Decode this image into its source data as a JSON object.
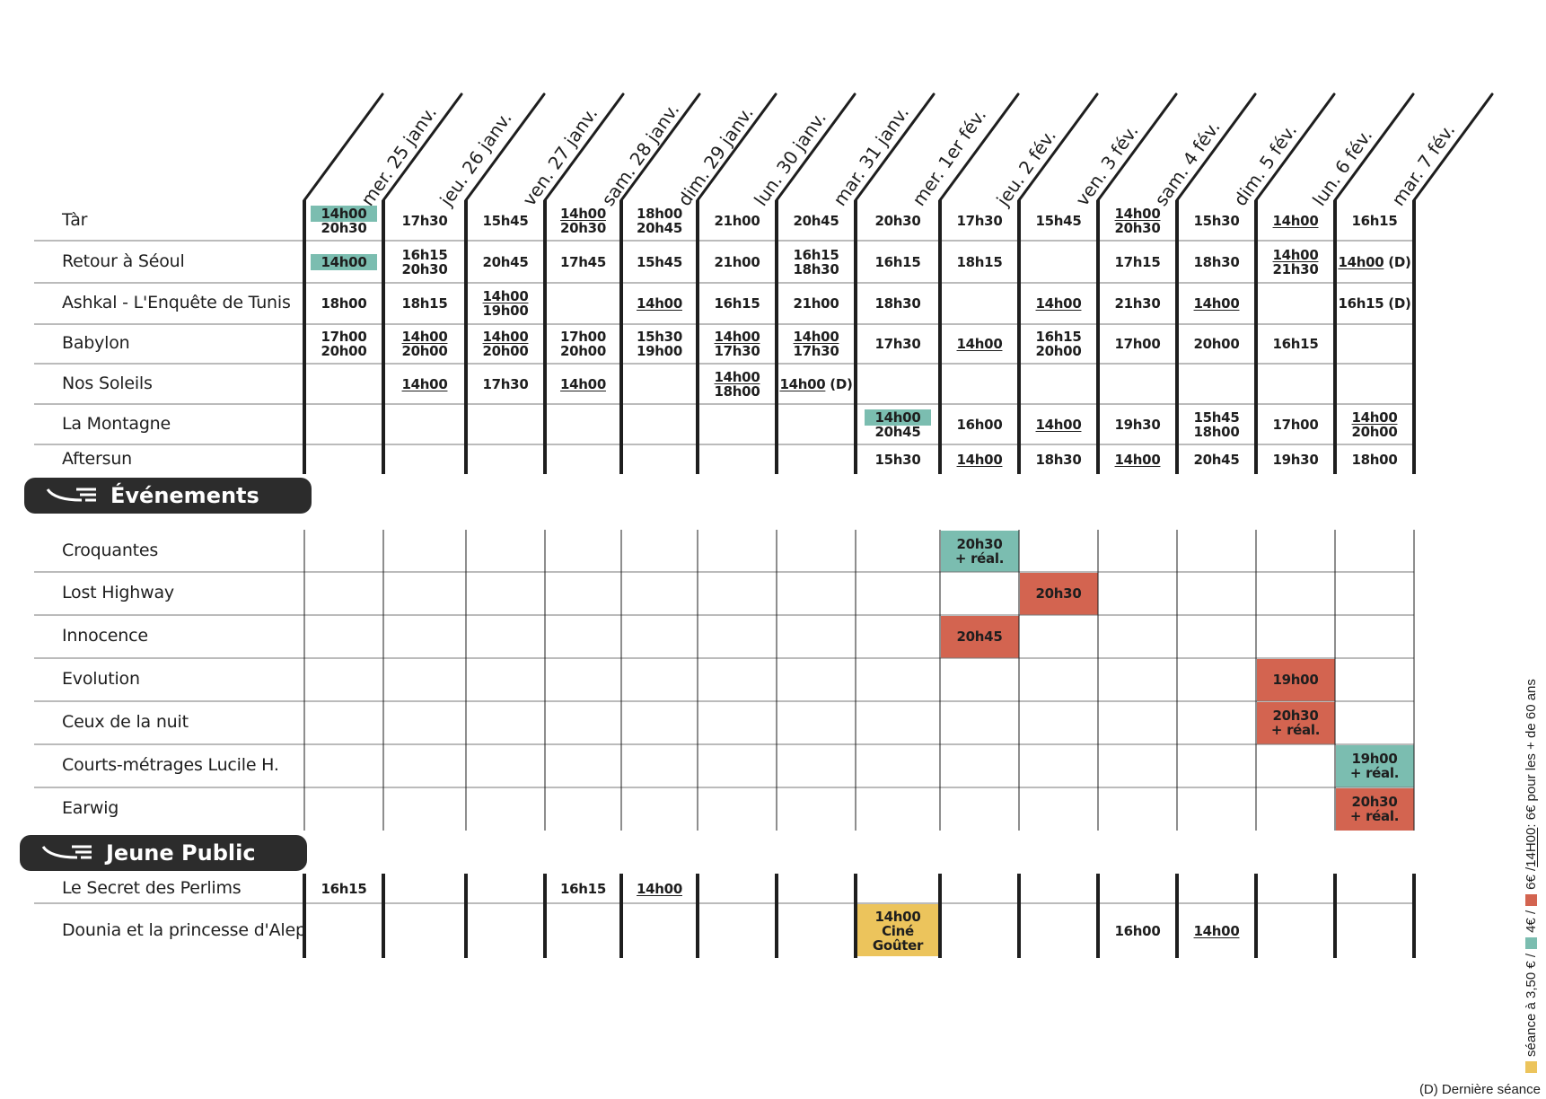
{
  "colors": {
    "teal": "#7bbdb0",
    "red": "#d36450",
    "yellow": "#ecc45c",
    "dark": "#2c2c2c",
    "line": "#1e1e1e"
  },
  "dates": [
    "mer. 25 janv.",
    "jeu. 26 janv.",
    "ven. 27 janv.",
    "sam. 28 janv.",
    "dim. 29 janv.",
    "lun. 30 janv.",
    "mar. 31 janv.",
    "mer. 1er fév.",
    "jeu. 2 fév.",
    "ven. 3 fév.",
    "sam. 4 fév.",
    "dim. 5 fév.",
    "lun. 6 fév.",
    "mar. 7 fév."
  ],
  "films": [
    {
      "title": "Tàr",
      "cells": [
        [
          {
            "t": "14h00",
            "hl": true
          },
          {
            "t": "20h30"
          }
        ],
        [
          {
            "t": "17h30"
          }
        ],
        [
          {
            "t": "15h45"
          }
        ],
        [
          {
            "t": "14h00",
            "u": true
          },
          {
            "t": "20h30"
          }
        ],
        [
          {
            "t": "18h00"
          },
          {
            "t": "20h45"
          }
        ],
        [
          {
            "t": "21h00"
          }
        ],
        [
          {
            "t": "20h45"
          }
        ],
        [
          {
            "t": "20h30"
          }
        ],
        [
          {
            "t": "17h30"
          }
        ],
        [
          {
            "t": "15h45"
          }
        ],
        [
          {
            "t": "14h00",
            "u": true
          },
          {
            "t": "20h30"
          }
        ],
        [
          {
            "t": "15h30"
          }
        ],
        [
          {
            "t": "14h00",
            "u": true
          }
        ],
        [
          {
            "t": "16h15"
          }
        ]
      ]
    },
    {
      "title": "Retour à Séoul",
      "cells": [
        [
          {
            "t": "14h00",
            "hl": true
          }
        ],
        [
          {
            "t": "16h15"
          },
          {
            "t": "20h30"
          }
        ],
        [
          {
            "t": "20h45"
          }
        ],
        [
          {
            "t": "17h45"
          }
        ],
        [
          {
            "t": "15h45"
          }
        ],
        [
          {
            "t": "21h00"
          }
        ],
        [
          {
            "t": "16h15"
          },
          {
            "t": "18h30"
          }
        ],
        [
          {
            "t": "16h15"
          }
        ],
        [
          {
            "t": "18h15"
          }
        ],
        [],
        [
          {
            "t": "17h15"
          }
        ],
        [
          {
            "t": "18h30"
          }
        ],
        [
          {
            "t": "14h00",
            "u": true
          },
          {
            "t": "21h30"
          }
        ],
        [
          {
            "t": "14h00",
            "u": true,
            "s": " (D)"
          }
        ]
      ]
    },
    {
      "title": "Ashkal - L'Enquête de Tunis",
      "cells": [
        [
          {
            "t": "18h00"
          }
        ],
        [
          {
            "t": "18h15"
          }
        ],
        [
          {
            "t": "14h00",
            "u": true
          },
          {
            "t": "19h00"
          }
        ],
        [],
        [
          {
            "t": "14h00",
            "u": true
          }
        ],
        [
          {
            "t": "16h15"
          }
        ],
        [
          {
            "t": "21h00"
          }
        ],
        [
          {
            "t": "18h30"
          }
        ],
        [],
        [
          {
            "t": "14h00",
            "u": true
          }
        ],
        [
          {
            "t": "21h30"
          }
        ],
        [
          {
            "t": "14h00",
            "u": true
          }
        ],
        [],
        [
          {
            "t": "16h15",
            "s": " (D)"
          }
        ]
      ]
    },
    {
      "title": "Babylon",
      "cells": [
        [
          {
            "t": "17h00"
          },
          {
            "t": "20h00"
          }
        ],
        [
          {
            "t": "14h00",
            "u": true
          },
          {
            "t": "20h00"
          }
        ],
        [
          {
            "t": "14h00",
            "u": true
          },
          {
            "t": "20h00"
          }
        ],
        [
          {
            "t": "17h00"
          },
          {
            "t": "20h00"
          }
        ],
        [
          {
            "t": "15h30"
          },
          {
            "t": "19h00"
          }
        ],
        [
          {
            "t": "14h00",
            "u": true
          },
          {
            "t": "17h30"
          }
        ],
        [
          {
            "t": "14h00",
            "u": true
          },
          {
            "t": "17h30"
          }
        ],
        [
          {
            "t": "17h30"
          }
        ],
        [
          {
            "t": "14h00",
            "u": true
          }
        ],
        [
          {
            "t": "16h15"
          },
          {
            "t": "20h00"
          }
        ],
        [
          {
            "t": "17h00"
          }
        ],
        [
          {
            "t": "20h00"
          }
        ],
        [
          {
            "t": "16h15"
          }
        ],
        []
      ]
    },
    {
      "title": "Nos Soleils",
      "cells": [
        [],
        [
          {
            "t": "14h00",
            "u": true
          }
        ],
        [
          {
            "t": "17h30"
          }
        ],
        [
          {
            "t": "14h00",
            "u": true
          }
        ],
        [],
        [
          {
            "t": "14h00",
            "u": true
          },
          {
            "t": "18h00"
          }
        ],
        [
          {
            "t": "14h00",
            "u": true,
            "s": " (D)"
          }
        ],
        [],
        [],
        [],
        [],
        [],
        [],
        []
      ]
    },
    {
      "title": "La Montagne",
      "cells": [
        [],
        [],
        [],
        [],
        [],
        [],
        [],
        [
          {
            "t": "14h00",
            "hl": true
          },
          {
            "t": "20h45"
          }
        ],
        [
          {
            "t": "16h00"
          }
        ],
        [
          {
            "t": "14h00",
            "u": true
          }
        ],
        [
          {
            "t": "19h30"
          }
        ],
        [
          {
            "t": "15h45"
          },
          {
            "t": "18h00"
          }
        ],
        [
          {
            "t": "17h00"
          }
        ],
        [
          {
            "t": "14h00",
            "u": true
          },
          {
            "t": "20h00"
          }
        ]
      ]
    },
    {
      "title": "Aftersun",
      "cells": [
        [],
        [],
        [],
        [],
        [],
        [],
        [],
        [
          {
            "t": "15h30"
          }
        ],
        [
          {
            "t": "14h00",
            "u": true
          }
        ],
        [
          {
            "t": "18h30"
          }
        ],
        [
          {
            "t": "14h00",
            "u": true
          }
        ],
        [
          {
            "t": "20h45"
          }
        ],
        [
          {
            "t": "19h30"
          }
        ],
        [
          {
            "t": "18h00"
          }
        ]
      ]
    }
  ],
  "events_title": "Événements",
  "events": [
    {
      "title": "Croquantes",
      "col": 8,
      "bg": "teal",
      "lines": [
        "20h30",
        "+ réal."
      ]
    },
    {
      "title": "Lost Highway",
      "col": 9,
      "bg": "red",
      "lines": [
        "20h30"
      ]
    },
    {
      "title": "Innocence",
      "col": 8,
      "bg": "red",
      "lines": [
        "20h45"
      ]
    },
    {
      "title": "Evolution",
      "col": 12,
      "bg": "red",
      "lines": [
        "19h00"
      ]
    },
    {
      "title": "Ceux de la nuit",
      "col": 12,
      "bg": "red",
      "lines": [
        "20h30",
        "+ réal."
      ]
    },
    {
      "title": "Courts-métrages Lucile H.",
      "col": 13,
      "bg": "teal",
      "lines": [
        "19h00",
        "+ réal."
      ]
    },
    {
      "title": "Earwig",
      "col": 13,
      "bg": "red",
      "lines": [
        "20h30",
        "+ réal."
      ]
    }
  ],
  "jeune_title": "Jeune Public",
  "jeune": [
    {
      "title": "Le Secret des Perlims",
      "cells": [
        [
          {
            "t": "16h15"
          }
        ],
        [],
        [],
        [
          {
            "t": "16h15"
          }
        ],
        [
          {
            "t": "14h00",
            "u": true
          }
        ],
        [],
        [],
        [],
        [],
        [],
        [],
        [],
        [],
        []
      ]
    },
    {
      "title": "Dounia et la princesse d'Alep",
      "cells": [
        [],
        [],
        [],
        [],
        [],
        [],
        [],
        [
          {
            "t": "14h00"
          },
          {
            "t": "Ciné"
          },
          {
            "t": "Goûter"
          }
        ],
        [],
        [],
        [
          {
            "t": "16h00"
          }
        ],
        [
          {
            "t": "14h00",
            "u": true
          }
        ],
        [],
        []
      ]
    }
  ],
  "legend": {
    "part1": "séance à 3,50 € / ",
    "part2": "4€ / ",
    "part3": "6€ / ",
    "part4": "14H00",
    "part5": " : 6€ pour les + de 60 ans"
  },
  "note": "(D) Dernière séance"
}
